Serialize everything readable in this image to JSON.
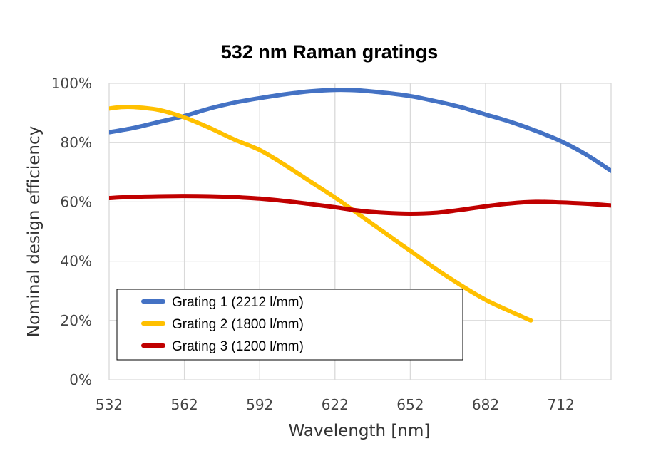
{
  "chart_data": {
    "type": "line",
    "title": "532 nm Raman gratings",
    "xlabel": "Wavelength [nm]",
    "ylabel": "Nominal design efficiency",
    "x_ticks": [
      "532",
      "562",
      "592",
      "622",
      "652",
      "682",
      "712"
    ],
    "y_ticks": [
      "0%",
      "20%",
      "40%",
      "60%",
      "80%",
      "100%"
    ],
    "xlim": [
      532,
      732
    ],
    "ylim": [
      0,
      100
    ],
    "grid": true,
    "legend_position": "bottom-left",
    "series": [
      {
        "name": "Grating 1 (2212 l/mm)",
        "color": "#4472C4",
        "x": [
          532,
          542,
          552,
          562,
          572,
          582,
          592,
          602,
          612,
          622,
          632,
          642,
          652,
          662,
          672,
          682,
          692,
          702,
          712,
          722,
          732
        ],
        "y": [
          83.5,
          85,
          87,
          89,
          91.5,
          93.5,
          95,
          96.3,
          97.3,
          97.8,
          97.6,
          96.8,
          95.7,
          94,
          92,
          89.5,
          87,
          84,
          80.5,
          76,
          70.5
        ]
      },
      {
        "name": "Grating 2 (1800 l/mm)",
        "color": "#FFC000",
        "x": [
          532,
          537,
          542,
          552,
          562,
          572,
          582,
          592,
          602,
          612,
          622,
          632,
          642,
          652,
          662,
          672,
          682,
          692,
          700
        ],
        "y": [
          91.5,
          92,
          92,
          91,
          88.5,
          85,
          81,
          77.5,
          72.5,
          67,
          61.5,
          55.5,
          49.5,
          43.5,
          37.5,
          32,
          27,
          23,
          20
        ]
      },
      {
        "name": "Grating 3 (1200 l/mm)",
        "color": "#C00000",
        "x": [
          532,
          542,
          552,
          562,
          572,
          582,
          592,
          602,
          612,
          622,
          632,
          642,
          652,
          662,
          672,
          682,
          692,
          702,
          712,
          722,
          732
        ],
        "y": [
          61.3,
          61.7,
          61.9,
          62,
          61.9,
          61.6,
          61.1,
          60.3,
          59.3,
          58.2,
          57,
          56.3,
          56,
          56.3,
          57.3,
          58.5,
          59.5,
          60,
          59.8,
          59.4,
          58.8
        ]
      }
    ]
  }
}
